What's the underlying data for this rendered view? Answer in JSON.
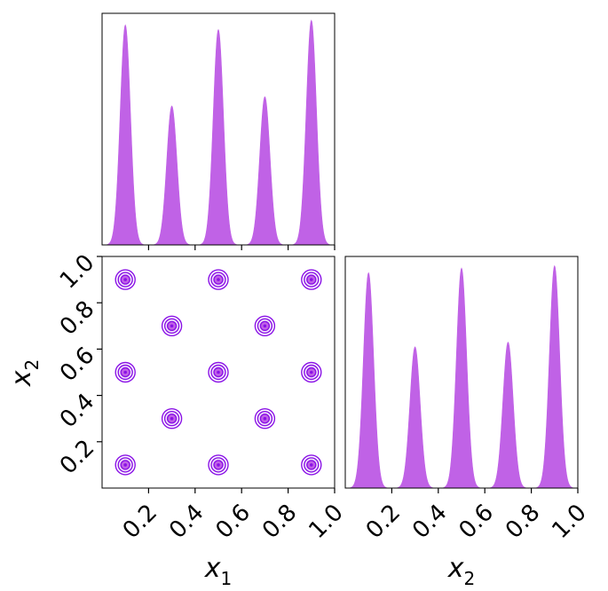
{
  "figure": {
    "fill_color": "#c062e6",
    "contour_color": "#8a12e6",
    "frame_color": "#000000"
  },
  "chart_data": [
    {
      "type": "area",
      "panel": "marginal-x1",
      "x_range": [
        0.0,
        1.0
      ],
      "peaks": [
        {
          "center": 0.1,
          "height": 0.95
        },
        {
          "center": 0.3,
          "height": 0.6
        },
        {
          "center": 0.5,
          "height": 0.93
        },
        {
          "center": 0.7,
          "height": 0.64
        },
        {
          "center": 0.9,
          "height": 0.97
        }
      ],
      "peak_sigma": 0.022,
      "y_ticks_shown": false
    },
    {
      "type": "scatter",
      "panel": "joint-x1-x2",
      "xlabel": "x",
      "xlabel_sub": "1",
      "ylabel": "x",
      "ylabel_sub": "2",
      "xlim": [
        0.0,
        1.0
      ],
      "ylim": [
        0.0,
        1.0
      ],
      "x_tick_values": [
        0.2,
        0.4,
        0.6,
        0.8,
        1.0
      ],
      "x_tick_labels": [
        "0.2",
        "0.4",
        "0.6",
        "0.8",
        "1.0"
      ],
      "y_tick_values": [
        0.2,
        0.4,
        0.6,
        0.8,
        1.0
      ],
      "y_tick_labels": [
        "0.2",
        "0.4",
        "0.6",
        "0.8",
        "1.0"
      ],
      "modes": [
        {
          "x": 0.1,
          "y": 0.9
        },
        {
          "x": 0.5,
          "y": 0.9
        },
        {
          "x": 0.9,
          "y": 0.9
        },
        {
          "x": 0.3,
          "y": 0.7
        },
        {
          "x": 0.7,
          "y": 0.7
        },
        {
          "x": 0.1,
          "y": 0.5
        },
        {
          "x": 0.5,
          "y": 0.5
        },
        {
          "x": 0.9,
          "y": 0.5
        },
        {
          "x": 0.3,
          "y": 0.3
        },
        {
          "x": 0.7,
          "y": 0.3
        },
        {
          "x": 0.1,
          "y": 0.1
        },
        {
          "x": 0.5,
          "y": 0.1
        },
        {
          "x": 0.9,
          "y": 0.1
        }
      ]
    },
    {
      "type": "area",
      "panel": "marginal-x2",
      "xlabel": "x",
      "xlabel_sub": "2",
      "x_range": [
        0.0,
        1.0
      ],
      "x_tick_values": [
        0.2,
        0.4,
        0.6,
        0.8,
        1.0
      ],
      "x_tick_labels": [
        "0.2",
        "0.4",
        "0.6",
        "0.8",
        "1.0"
      ],
      "peaks": [
        {
          "center": 0.1,
          "height": 0.93
        },
        {
          "center": 0.3,
          "height": 0.61
        },
        {
          "center": 0.5,
          "height": 0.95
        },
        {
          "center": 0.7,
          "height": 0.63
        },
        {
          "center": 0.9,
          "height": 0.96
        }
      ],
      "peak_sigma": 0.022,
      "y_ticks_shown": false
    }
  ]
}
